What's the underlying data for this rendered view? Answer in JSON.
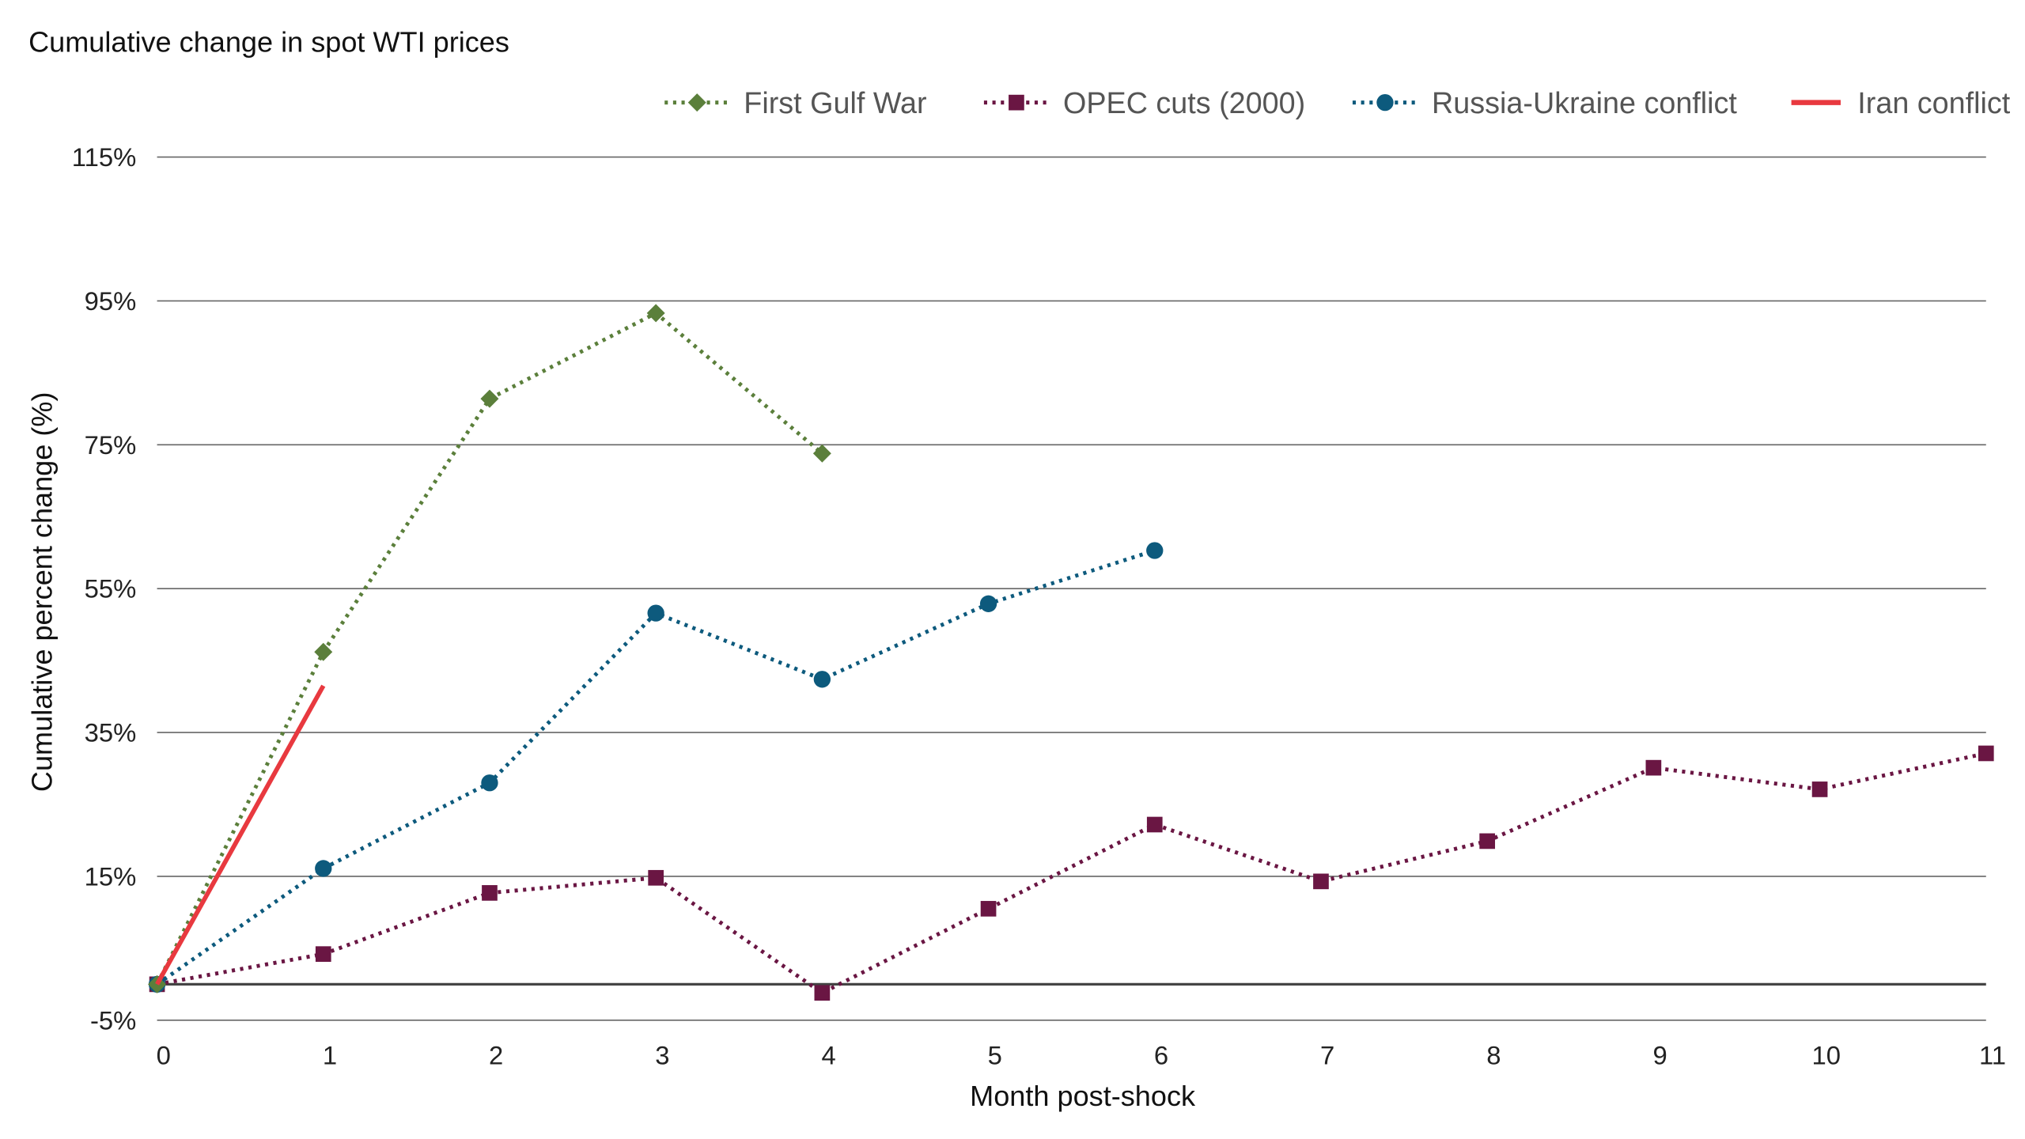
{
  "chart_data": {
    "type": "line",
    "title": "Cumulative change in spot WTI prices",
    "xlabel": "Month post-shock",
    "ylabel": "Cumulative percent change (%)",
    "xlim": [
      0,
      11
    ],
    "ylim": [
      -5,
      115
    ],
    "x_ticks": [
      "0",
      "1",
      "2",
      "3",
      "4",
      "5",
      "6",
      "7",
      "8",
      "9",
      "10",
      "11"
    ],
    "y_ticks": [
      {
        "value": 115,
        "label": "115%"
      },
      {
        "value": 95,
        "label": "95%"
      },
      {
        "value": 75,
        "label": "75%"
      },
      {
        "value": 55,
        "label": "55%"
      },
      {
        "value": 35,
        "label": "35%"
      },
      {
        "value": 15,
        "label": "15%"
      },
      {
        "value": -5,
        "label": "-5%"
      }
    ],
    "grid": true,
    "legend_position": "top-right",
    "series": [
      {
        "name": "First Gulf War",
        "color": "#5b7f3b",
        "style": "dotted",
        "marker": "diamond",
        "x": [
          0,
          1,
          2,
          3,
          4
        ],
        "values": [
          0,
          46.2,
          81.4,
          93.3,
          73.8
        ]
      },
      {
        "name": "OPEC cuts (2000)",
        "color": "#6a1643",
        "style": "dotted",
        "marker": "square",
        "x": [
          0,
          1,
          2,
          3,
          4,
          5,
          6,
          7,
          8,
          9,
          10,
          11
        ],
        "values": [
          0,
          4.2,
          12.7,
          14.8,
          -1.2,
          10.5,
          22.2,
          14.3,
          19.9,
          30.1,
          27.1,
          32.1
        ]
      },
      {
        "name": "Russia-Ukraine conflict",
        "color": "#0d5a7d",
        "style": "dotted",
        "marker": "circle",
        "x": [
          0,
          1,
          2,
          3,
          4,
          5,
          6
        ],
        "values": [
          0,
          16.1,
          28.0,
          51.6,
          42.4,
          52.9,
          60.3
        ]
      },
      {
        "name": "Iran conflict",
        "color": "#e8393f",
        "style": "solid",
        "marker": "none",
        "x": [
          0,
          1
        ],
        "values": [
          0,
          41.5
        ]
      }
    ]
  }
}
